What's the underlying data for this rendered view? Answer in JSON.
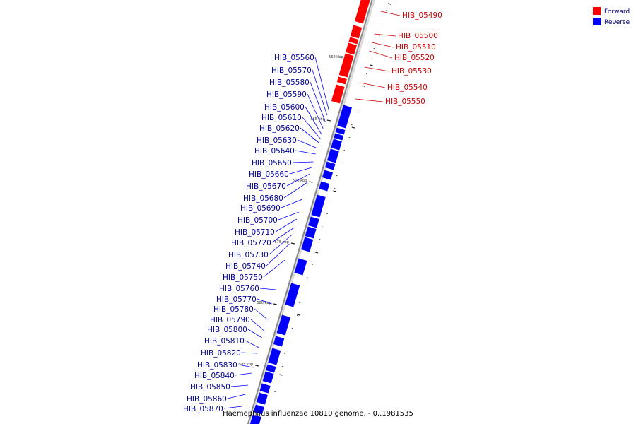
{
  "genome_caption": "Haemophilus influenzae 10810 genome. - 0..1981535",
  "legend": [
    {
      "label": "Forward",
      "color": "#ff0000"
    },
    {
      "label": "Reverse",
      "color": "#0000ff"
    }
  ],
  "colors": {
    "forward": "#ff0000",
    "reverse": "#0000ff",
    "forward_label": "#cc0000",
    "reverse_label": "#000099",
    "backbone": "#8c8c8c"
  },
  "ticks": [
    "560 kbp",
    "565 kbp",
    "570 kbp",
    "575 kbp",
    "580 kbp",
    "585 kbp"
  ],
  "forward_genes": [
    "HIB_05490",
    "HIB_05500",
    "HIB_05510",
    "HIB_05520",
    "HIB_05530",
    "HIB_05540",
    "HIB_05550"
  ],
  "reverse_genes": [
    "HIB_05560",
    "HIB_05570",
    "HIB_05580",
    "HIB_05590",
    "HIB_05600",
    "HIB_05610",
    "HIB_05620",
    "HIB_05630",
    "HIB_05640",
    "HIB_05650",
    "HIB_05660",
    "HIB_05670",
    "HIB_05680",
    "HIB_05690",
    "HIB_05700",
    "HIB_05710",
    "HIB_05720",
    "HIB_05730",
    "HIB_05740",
    "HIB_05750",
    "HIB_05760",
    "HIB_05770",
    "HIB_05780",
    "HIB_05790",
    "HIB_05800",
    "HIB_05810",
    "HIB_05820",
    "HIB_05830",
    "HIB_05840",
    "HIB_05850",
    "HIB_05860",
    "HIB_05870"
  ]
}
